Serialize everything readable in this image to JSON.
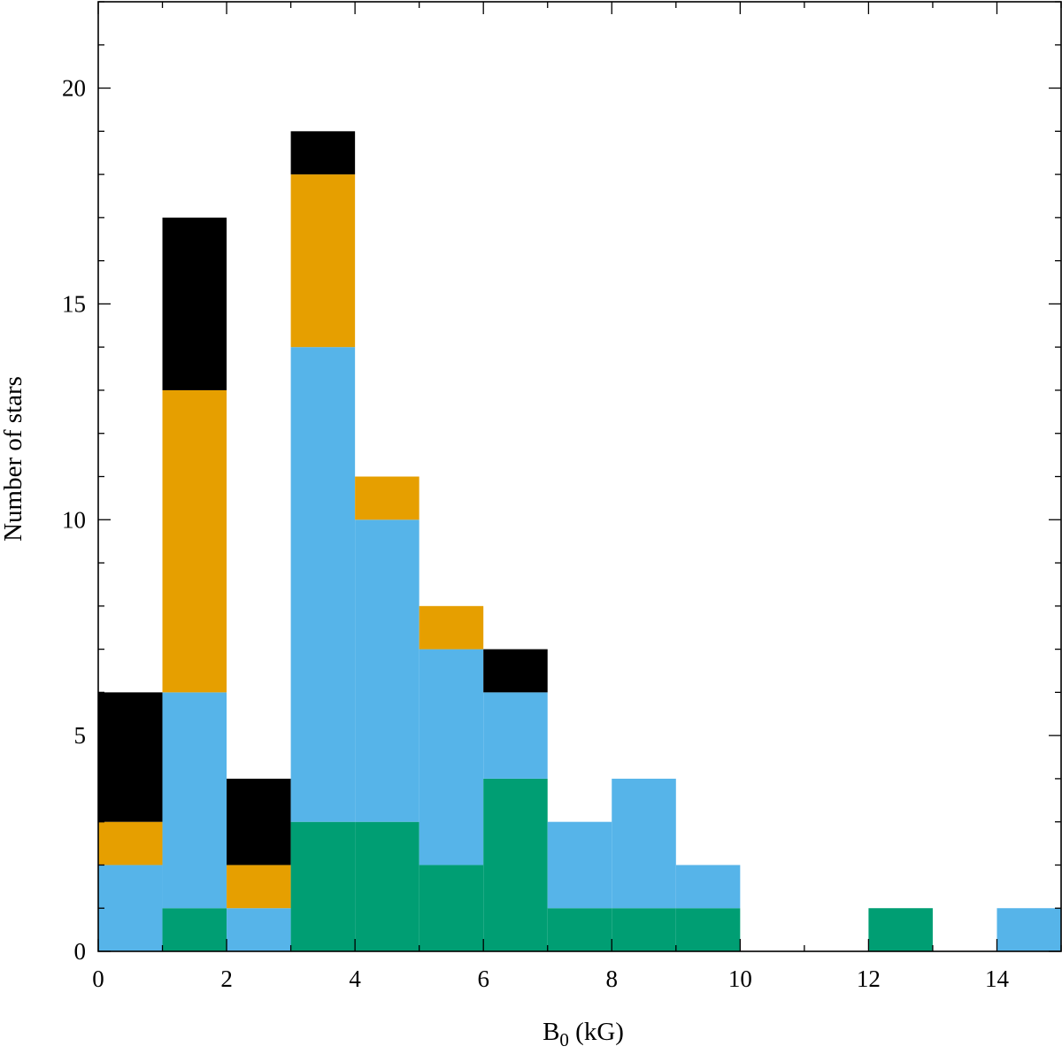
{
  "chart_data": {
    "type": "bar",
    "stacked": true,
    "xlabel": "B",
    "xlabel_subscript": "0",
    "xlabel_unit": " (kG)",
    "ylabel": "Number of stars",
    "xlim": [
      0,
      15
    ],
    "ylim": [
      0,
      22
    ],
    "xticks": [
      0,
      2,
      4,
      6,
      8,
      10,
      12,
      14
    ],
    "yticks": [
      0,
      5,
      10,
      15,
      20
    ],
    "bin_width": 1,
    "bin_starts": [
      0,
      1,
      2,
      3,
      4,
      5,
      6,
      7,
      8,
      9,
      10,
      11,
      12,
      13,
      14
    ],
    "grid": false,
    "series": [
      {
        "color": "#009E73",
        "values": [
          0,
          1,
          0,
          3,
          3,
          2,
          4,
          1,
          1,
          1,
          0,
          0,
          1,
          0,
          0
        ]
      },
      {
        "color": "#56B4E9",
        "values": [
          2,
          5,
          1,
          11,
          7,
          5,
          2,
          2,
          3,
          1,
          0,
          0,
          0,
          0,
          1
        ]
      },
      {
        "color": "#E69F00",
        "values": [
          1,
          7,
          1,
          4,
          1,
          1,
          0,
          0,
          0,
          0,
          0,
          0,
          0,
          0,
          0
        ]
      },
      {
        "color": "#000000",
        "values": [
          3,
          4,
          2,
          1,
          0,
          0,
          1,
          0,
          0,
          0,
          0,
          0,
          0,
          0,
          0
        ]
      }
    ]
  }
}
